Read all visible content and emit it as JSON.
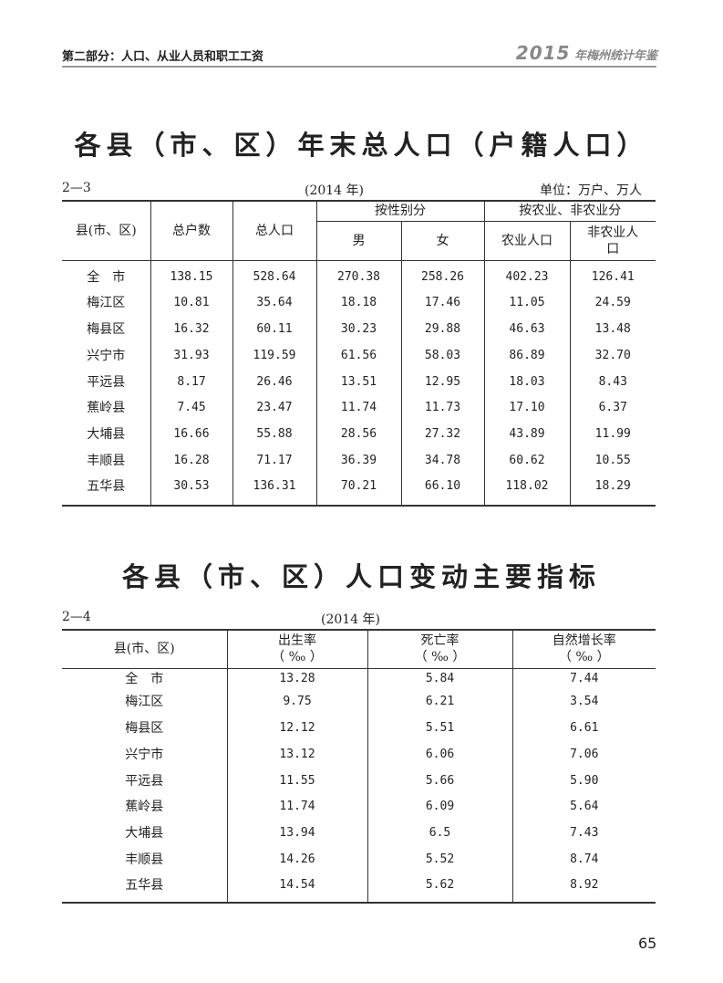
{
  "header": {
    "section": "第二部分：人口、从业人员和职工工资",
    "yearbook_year": "2015",
    "yearbook_name": "年梅州统计年鉴"
  },
  "table1": {
    "title": "各县（市、区）年末总人口（户籍人口）",
    "number": "2—3",
    "year": "(2014 年)",
    "unit": "单位：万户、万人",
    "headers": {
      "county": "县(市、区)",
      "households": "总户数",
      "population": "总人口",
      "by_sex": "按性别分",
      "male": "男",
      "female": "女",
      "by_agri": "按农业、非农业分",
      "agri": "农业人口",
      "nonagri": "非农业人口"
    },
    "rows": [
      [
        "全　市",
        "138.15",
        "528.64",
        "270.38",
        "258.26",
        "402.23",
        "126.41"
      ],
      [
        "梅江区",
        "10.81",
        "35.64",
        "18.18",
        "17.46",
        "11.05",
        "24.59"
      ],
      [
        "梅县区",
        "16.32",
        "60.11",
        "30.23",
        "29.88",
        "46.63",
        "13.48"
      ],
      [
        "兴宁市",
        "31.93",
        "119.59",
        "61.56",
        "58.03",
        "86.89",
        "32.70"
      ],
      [
        "平远县",
        "8.17",
        "26.46",
        "13.51",
        "12.95",
        "18.03",
        "8.43"
      ],
      [
        "蕉岭县",
        "7.45",
        "23.47",
        "11.74",
        "11.73",
        "17.10",
        "6.37"
      ],
      [
        "大埔县",
        "16.66",
        "55.88",
        "28.56",
        "27.32",
        "43.89",
        "11.99"
      ],
      [
        "丰顺县",
        "16.28",
        "71.17",
        "36.39",
        "34.78",
        "60.62",
        "10.55"
      ],
      [
        "五华县",
        "30.53",
        "136.31",
        "70.21",
        "66.10",
        "118.02",
        "18.29"
      ]
    ]
  },
  "table2": {
    "title": "各县（市、区）人口变动主要指标",
    "number": "2—4",
    "year": "(2014 年)",
    "headers": {
      "county": "县(市、区)",
      "birth": "出生率",
      "death": "死亡率",
      "growth": "自然增长率",
      "unit": "（ ‰ ）"
    },
    "rows": [
      [
        "全　市",
        "13.28",
        "5.84",
        "7.44"
      ],
      [
        "梅江区",
        "9.75",
        "6.21",
        "3.54"
      ],
      [
        "梅县区",
        "12.12",
        "5.51",
        "6.61"
      ],
      [
        "兴宁市",
        "13.12",
        "6.06",
        "7.06"
      ],
      [
        "平远县",
        "11.55",
        "5.66",
        "5.90"
      ],
      [
        "蕉岭县",
        "11.74",
        "6.09",
        "5.64"
      ],
      [
        "大埔县",
        "13.94",
        "6.5",
        "7.43"
      ],
      [
        "丰顺县",
        "14.26",
        "5.52",
        "8.74"
      ],
      [
        "五华县",
        "14.54",
        "5.62",
        "8.92"
      ]
    ]
  },
  "page_number": "65"
}
